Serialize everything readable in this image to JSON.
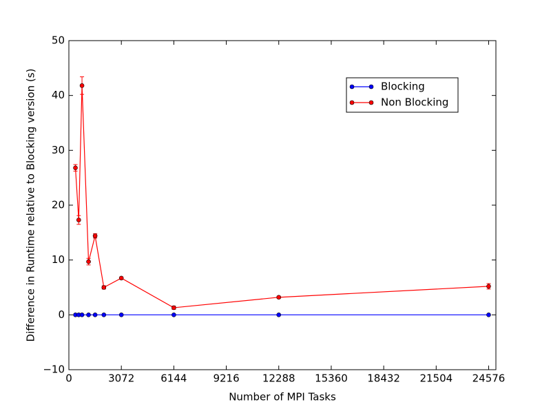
{
  "chart_data": {
    "type": "line",
    "xlabel": "Number of MPI Tasks",
    "ylabel": "Difference in Runtime relative to Blocking version (s)",
    "x": [
      384,
      576,
      768,
      1152,
      1536,
      2048,
      3072,
      6144,
      12288,
      24576
    ],
    "series": [
      {
        "name": "Blocking",
        "color": "#0000ff",
        "values": [
          0,
          0,
          0,
          0,
          0,
          0,
          0,
          0,
          0,
          0
        ]
      },
      {
        "name": "Non Blocking",
        "color": "#ff0000",
        "values": [
          26.8,
          17.3,
          41.8,
          9.7,
          14.4,
          5.0,
          6.7,
          1.3,
          3.2,
          5.2
        ],
        "errors": [
          0.6,
          0.8,
          1.6,
          0.6,
          0.4,
          0.3,
          0.2,
          0.3,
          0.2,
          0.5
        ]
      }
    ],
    "xlim": [
      0,
      25000
    ],
    "xticks": [
      0,
      3072,
      6144,
      9216,
      12288,
      15360,
      18432,
      21504,
      24576
    ],
    "ylim": [
      -10,
      50
    ],
    "yticks": [
      {
        "value": -10,
        "label": "−10"
      },
      0,
      10,
      20,
      30,
      40,
      50
    ],
    "legend": "upper right",
    "grid": false
  }
}
